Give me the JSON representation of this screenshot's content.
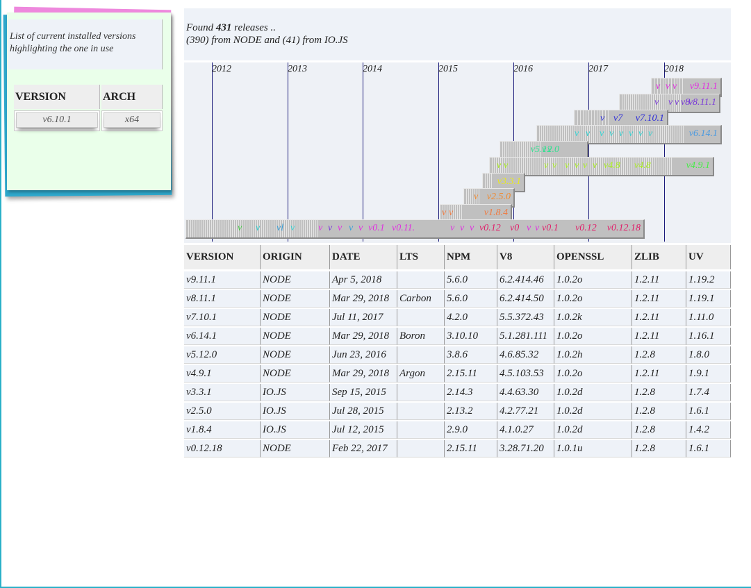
{
  "installed": {
    "caption_line1": "List of current installed versions",
    "caption_line2": "highlighting the one in use",
    "headers": {
      "version": "VERSION",
      "arch": "ARCH"
    },
    "current": {
      "version": "v6.10.1",
      "arch": "x64"
    }
  },
  "summary": {
    "prefix": "Found",
    "count": "431",
    "suffix": "releases ..",
    "line2": "(390) from NODE and (41) from IO.JS"
  },
  "timeline": {
    "years": [
      "2012",
      "2013",
      "2014",
      "2015",
      "2016",
      "2017",
      "2018"
    ],
    "rows": [
      {
        "label": "v9.11.1",
        "color": "#e030e0"
      },
      {
        "label": "v8.11.1",
        "color": "#7a3ad8"
      },
      {
        "label": "v7.10.1",
        "color": "#2a2ad8"
      },
      {
        "label": "v6.14.1",
        "color": "#4a9ae0"
      },
      {
        "label": "v5.12.0",
        "color": "#30e090"
      },
      {
        "label": "v4.9.1",
        "color": "#44ee44"
      },
      {
        "label": "v3.3.1",
        "color": "#e8e820"
      },
      {
        "label": "v2.5.0",
        "color": "#f08a30"
      },
      {
        "label": "v1.8.4",
        "color": "#f07a40"
      },
      {
        "label": "v0.12.18",
        "color": "#e0206a"
      }
    ],
    "fragments": {
      "r0": [
        "v",
        "v",
        "v"
      ],
      "r1": [
        "v",
        "v",
        "v",
        "v8"
      ],
      "r2": [
        "v",
        "v7"
      ],
      "r3": [
        "v",
        "v",
        "v",
        "v",
        "v",
        "v",
        "v",
        "v"
      ],
      "r4": [
        "v",
        "v"
      ],
      "r5": [
        "v",
        "v",
        "v",
        "v",
        "v",
        "v",
        "v",
        "v",
        "v4.8",
        "v4.8"
      ],
      "r7": [
        "v"
      ],
      "r8": [
        "v",
        "v"
      ],
      "r9": [
        "v",
        "v",
        "vl",
        "v",
        "v",
        "v",
        "v",
        "v",
        "v",
        "v0.1",
        "v0.11.",
        "v",
        "v",
        "v",
        "v0.12",
        "v0",
        "v",
        "v",
        "v0.1",
        "v0.12"
      ]
    }
  },
  "releases": {
    "headers": [
      "VERSION",
      "ORIGIN",
      "DATE",
      "LTS",
      "NPM",
      "V8",
      "OPENSSL",
      "ZLIB",
      "UV"
    ],
    "rows": [
      [
        "v9.11.1",
        "NODE",
        "Apr 5, 2018",
        "",
        "5.6.0",
        "6.2.414.46",
        "1.0.2o",
        "1.2.11",
        "1.19.2"
      ],
      [
        "v8.11.1",
        "NODE",
        "Mar 29, 2018",
        "Carbon",
        "5.6.0",
        "6.2.414.50",
        "1.0.2o",
        "1.2.11",
        "1.19.1"
      ],
      [
        "v7.10.1",
        "NODE",
        "Jul 11, 2017",
        "",
        "4.2.0",
        "5.5.372.43",
        "1.0.2k",
        "1.2.11",
        "1.11.0"
      ],
      [
        "v6.14.1",
        "NODE",
        "Mar 29, 2018",
        "Boron",
        "3.10.10",
        "5.1.281.111",
        "1.0.2o",
        "1.2.11",
        "1.16.1"
      ],
      [
        "v5.12.0",
        "NODE",
        "Jun 23, 2016",
        "",
        "3.8.6",
        "4.6.85.32",
        "1.0.2h",
        "1.2.8",
        "1.8.0"
      ],
      [
        "v4.9.1",
        "NODE",
        "Mar 29, 2018",
        "Argon",
        "2.15.11",
        "4.5.103.53",
        "1.0.2o",
        "1.2.11",
        "1.9.1"
      ],
      [
        "v3.3.1",
        "IO.JS",
        "Sep 15, 2015",
        "",
        "2.14.3",
        "4.4.63.30",
        "1.0.2d",
        "1.2.8",
        "1.7.4"
      ],
      [
        "v2.5.0",
        "IO.JS",
        "Jul 28, 2015",
        "",
        "2.13.2",
        "4.2.77.21",
        "1.0.2d",
        "1.2.8",
        "1.6.1"
      ],
      [
        "v1.8.4",
        "IO.JS",
        "Jul 12, 2015",
        "",
        "2.9.0",
        "4.1.0.27",
        "1.0.2d",
        "1.2.8",
        "1.4.2"
      ],
      [
        "v0.12.18",
        "NODE",
        "Feb 22, 2017",
        "",
        "2.15.11",
        "3.28.71.20",
        "1.0.1u",
        "1.2.8",
        "1.6.1"
      ]
    ]
  }
}
